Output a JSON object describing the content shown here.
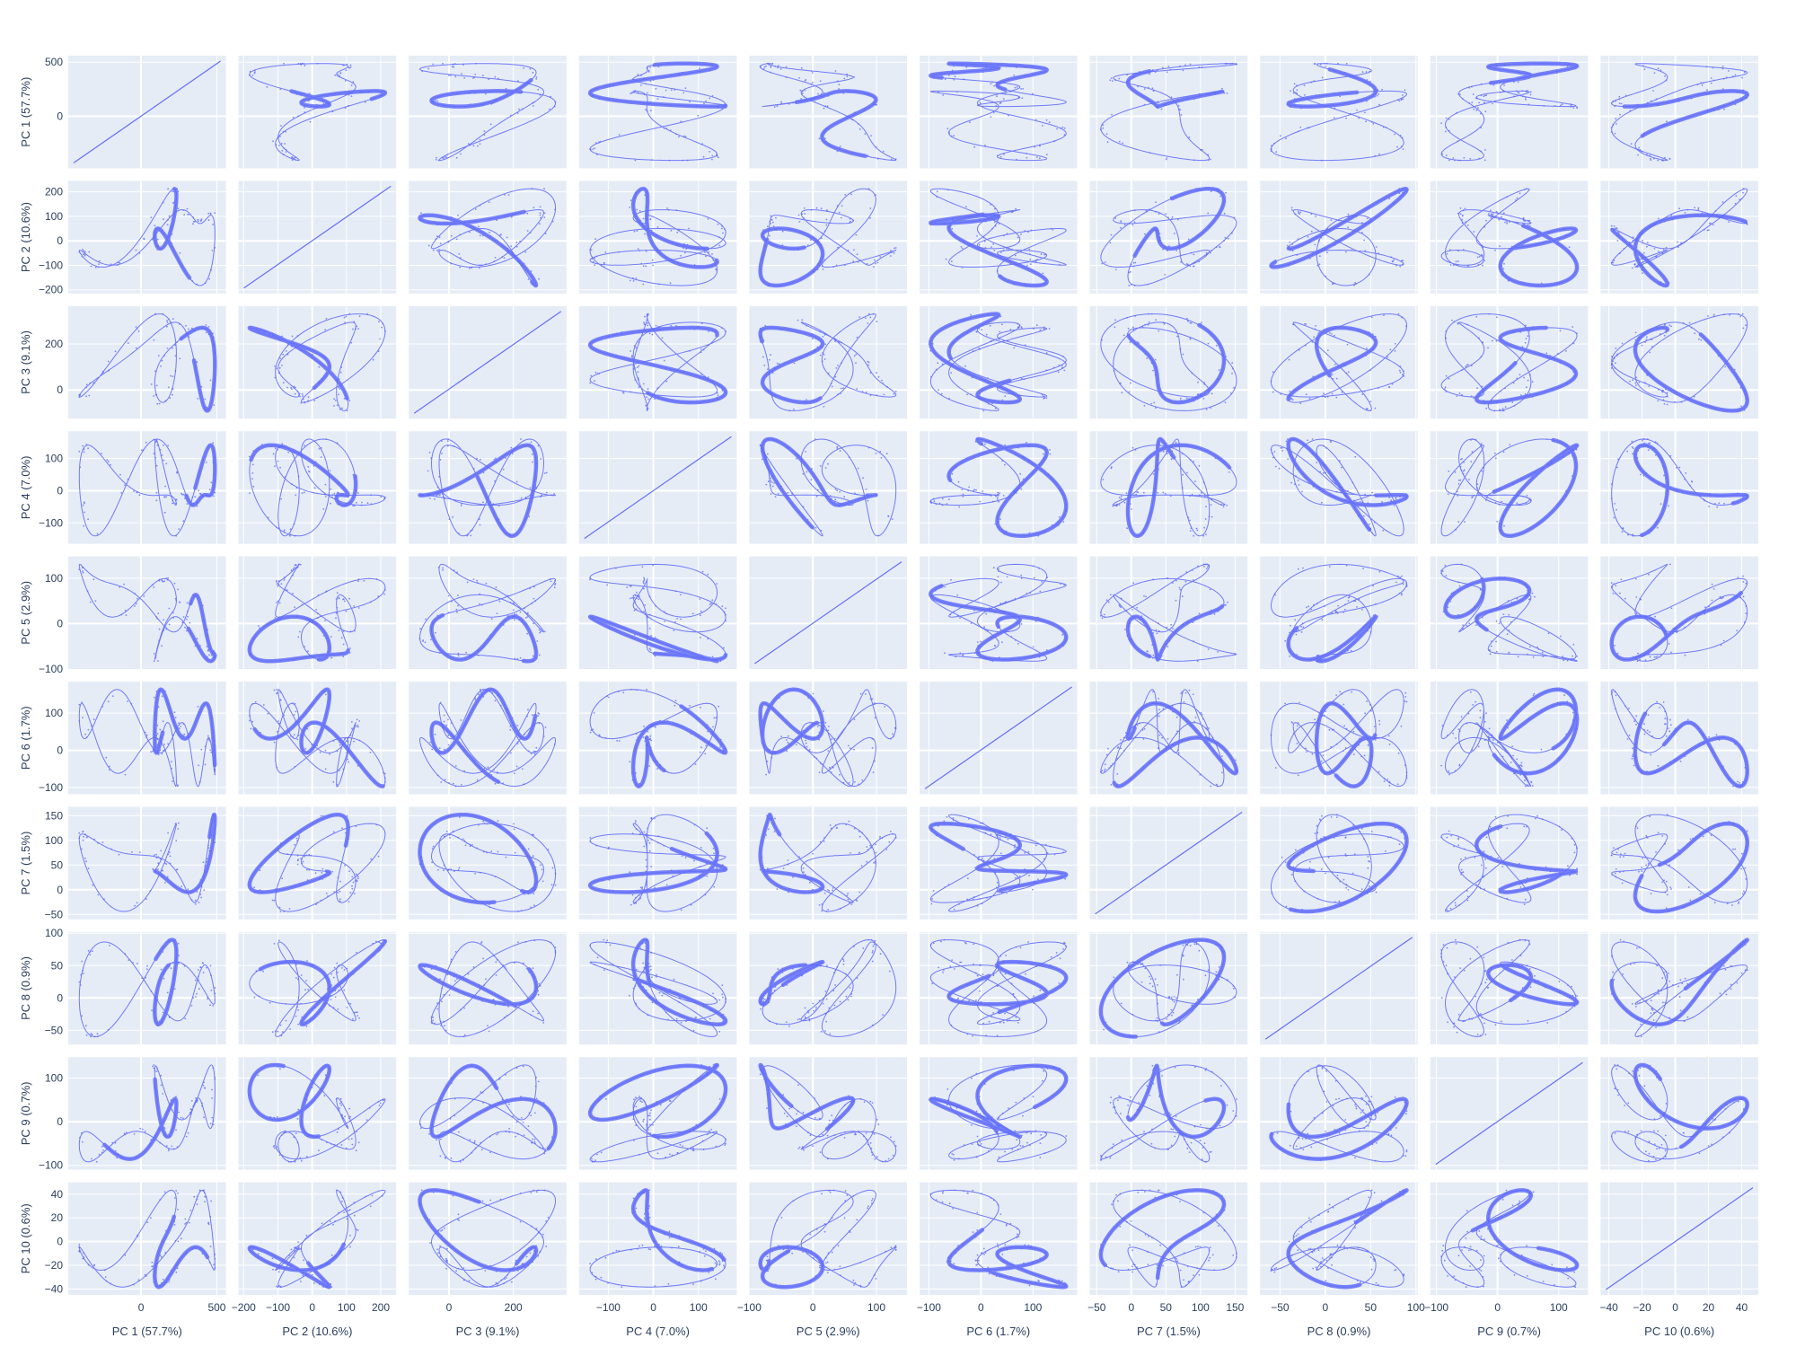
{
  "colors": {
    "marker": "#636efa",
    "panel_bg": "#e5ecf6",
    "grid": "#ffffff",
    "text": "#2a3f5f"
  },
  "chart_data": {
    "type": "scatter",
    "subtype": "scatter-matrix",
    "title": "",
    "grid": true,
    "legend": "none",
    "dimensions": [
      {
        "label": "PC 1 (57.7%)",
        "range": [
          -480,
          560
        ],
        "ticks": [
          0,
          500
        ]
      },
      {
        "label": "PC 2 (10.6%)",
        "range": [
          -215,
          245
        ],
        "ticks": [
          -200,
          -100,
          0,
          100,
          200
        ]
      },
      {
        "label": "PC 3 (9.1%)",
        "range": [
          -125,
          365
        ],
        "ticks": [
          0,
          200
        ]
      },
      {
        "label": "PC 4 (7.0%)",
        "range": [
          -165,
          185
        ],
        "ticks": [
          -100,
          0,
          100
        ]
      },
      {
        "label": "PC 5 (2.9%)",
        "range": [
          -100,
          148
        ],
        "ticks": [
          -100,
          0,
          100
        ]
      },
      {
        "label": "PC 6 (1.7%)",
        "range": [
          -118,
          185
        ],
        "ticks": [
          -100,
          0,
          100
        ]
      },
      {
        "label": "PC 7 (1.5%)",
        "range": [
          -60,
          168
        ],
        "ticks": [
          -50,
          0,
          50,
          100,
          150
        ]
      },
      {
        "label": "PC 8 (0.9%)",
        "range": [
          -72,
          102
        ],
        "ticks": [
          -50,
          0,
          50,
          100
        ]
      },
      {
        "label": "PC 9 (0.7%)",
        "range": [
          -110,
          148
        ],
        "ticks": [
          -100,
          0,
          100
        ]
      },
      {
        "label": "PC 10 (0.6%)",
        "range": [
          -45,
          50
        ],
        "ticks": [
          -40,
          -20,
          0,
          20,
          40
        ]
      }
    ],
    "diagonal": "identity-line",
    "off_diagonal": "dense point-cloud trajectories (each panel plots the row PC against the column PC)"
  }
}
